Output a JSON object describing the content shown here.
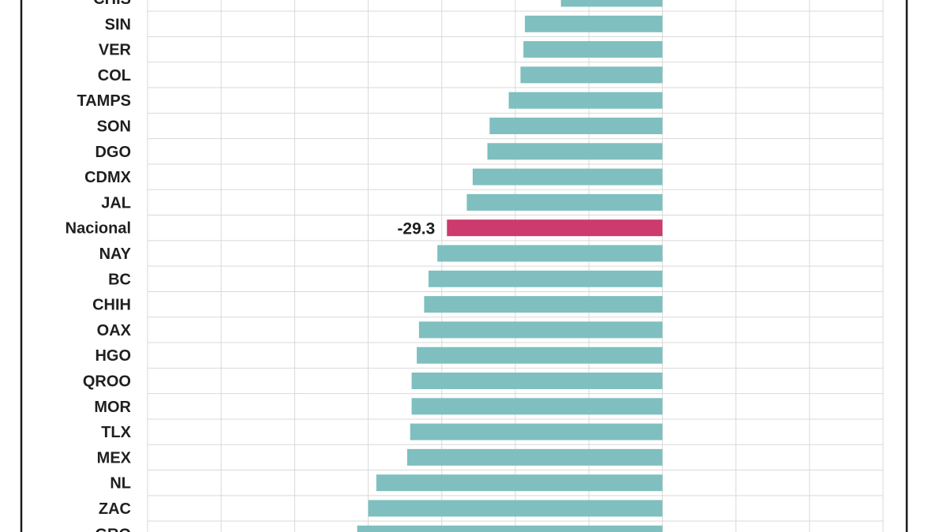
{
  "chart_data": {
    "type": "bar",
    "orientation": "horizontal",
    "categories": [
      "CHIS",
      "SIN",
      "VER",
      "COL",
      "TAMPS",
      "SON",
      "DGO",
      "CDMX",
      "JAL",
      "Nacional",
      "NAY",
      "BC",
      "CHIH",
      "OAX",
      "HGO",
      "QROO",
      "MOR",
      "TLX",
      "MEX",
      "NL",
      "ZAC",
      "GRO"
    ],
    "values": [
      -13.8,
      -18.7,
      -18.9,
      -19.3,
      -20.9,
      -23.5,
      -23.8,
      -25.8,
      -26.6,
      -29.3,
      -30.6,
      -31.8,
      -32.4,
      -33.1,
      -33.4,
      -34.1,
      -34.1,
      -34.3,
      -34.7,
      -38.9,
      -40.0,
      -41.5
    ],
    "highlight": "Nacional",
    "data_labels": [
      {
        "category": "Nacional",
        "text": "-29.3"
      }
    ],
    "xlim": [
      -70,
      30
    ],
    "grid": true,
    "colors": {
      "bar": "#7fbfbf",
      "highlight": "#cc3a6e",
      "grid": "#d9d9d9",
      "frame": "#1a1a1a"
    }
  }
}
